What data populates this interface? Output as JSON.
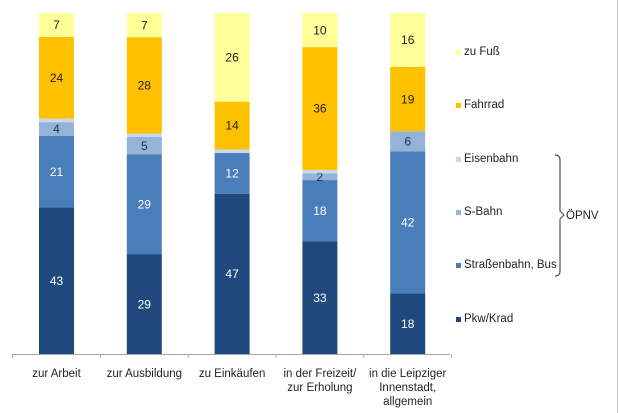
{
  "chart_data": {
    "type": "bar",
    "stacked": true,
    "percent": true,
    "title": "",
    "xlabel": "",
    "ylabel": "",
    "ylim": [
      0,
      100
    ],
    "grid": false,
    "legend_position": "right",
    "categories": [
      [
        "zur Arbeit"
      ],
      [
        "zur Ausbildung"
      ],
      [
        "zu Einkäufen"
      ],
      [
        "in der Freizeit/",
        "zur Erholung"
      ],
      [
        "in die Leipziger",
        "Innenstadt,",
        "allgemein"
      ]
    ],
    "series": [
      {
        "name": "Pkw/Krad",
        "color": "#1F497D",
        "label_color": "#ffffff",
        "values": [
          43,
          29,
          47,
          33,
          18
        ],
        "show_labels": true
      },
      {
        "name": "Straßenbahn, Bus",
        "color": "#4A7EBB",
        "label_color": "#ffffff",
        "values": [
          21,
          29,
          12,
          18,
          42
        ],
        "show_labels": true
      },
      {
        "name": "S-Bahn",
        "color": "#95B3D7",
        "label_color": "#1F3050",
        "values": [
          4,
          5,
          0,
          2,
          6
        ],
        "show_labels": true
      },
      {
        "name": "Eisenbahn",
        "color": "#C6D9F1",
        "label_color": "#1F3050",
        "values": [
          1,
          1,
          1,
          1,
          0
        ],
        "show_labels": false
      },
      {
        "name": "Fahrrad",
        "color": "#FFC000",
        "label_color": "#222222",
        "values": [
          24,
          28,
          14,
          36,
          19
        ],
        "show_labels": true
      },
      {
        "name": "zu Fuß",
        "color": "#FFFF99",
        "label_color": "#222222",
        "values": [
          7,
          7,
          26,
          10,
          16
        ],
        "show_labels": true
      }
    ],
    "legend_order": [
      "zu Fuß",
      "Fahrrad",
      "Eisenbahn",
      "S-Bahn",
      "Straßenbahn, Bus",
      "Pkw/Krad"
    ],
    "legend_group": {
      "label": "ÖPNV",
      "members": [
        "Eisenbahn",
        "S-Bahn",
        "Straßenbahn, Bus"
      ]
    }
  }
}
